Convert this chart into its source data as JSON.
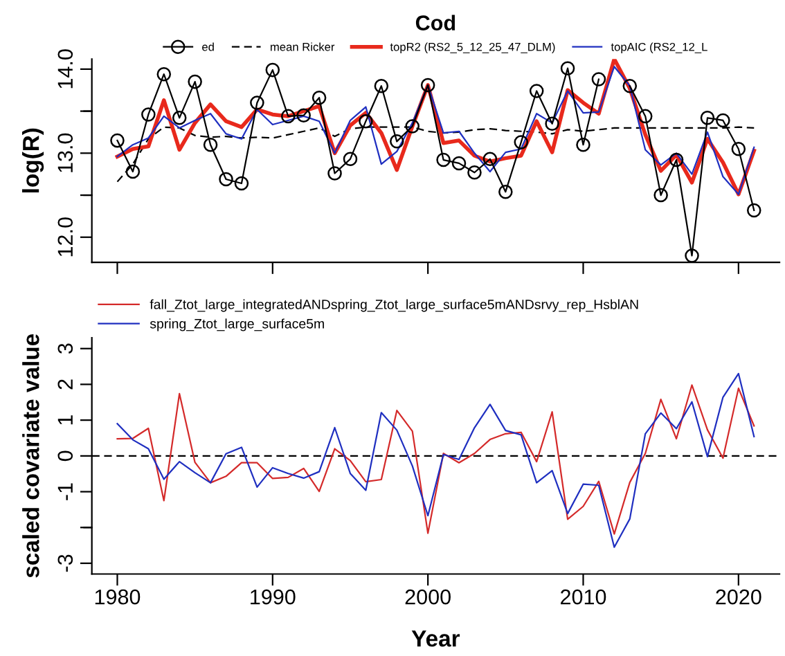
{
  "chart_data": [
    {
      "type": "line",
      "title": "Cod",
      "ylabel": "log(R)",
      "x": [
        1980,
        1981,
        1982,
        1983,
        1984,
        1985,
        1986,
        1987,
        1988,
        1989,
        1990,
        1991,
        1992,
        1993,
        1994,
        1995,
        1996,
        1997,
        1998,
        1999,
        2000,
        2001,
        2002,
        2003,
        2004,
        2005,
        2006,
        2007,
        2008,
        2009,
        2010,
        2011,
        2012,
        2013,
        2014,
        2015,
        2016,
        2017,
        2018,
        2019,
        2020,
        2021
      ],
      "series": [
        {
          "name": "ed",
          "color": "#000000",
          "marker": "circle",
          "line_style": "solid",
          "values": [
            13.15,
            12.78,
            13.46,
            13.94,
            13.42,
            13.85,
            13.1,
            12.69,
            12.64,
            13.6,
            13.99,
            13.44,
            13.45,
            13.66,
            12.76,
            12.93,
            13.38,
            13.8,
            13.14,
            13.32,
            13.81,
            12.92,
            12.88,
            12.77,
            12.93,
            12.54,
            13.13,
            13.74,
            13.35,
            14.01,
            13.1,
            13.88,
            null,
            13.8,
            13.44,
            12.5,
            12.92,
            11.78,
            13.42,
            13.39,
            13.05,
            12.32
          ]
        },
        {
          "name": "mean Ricker",
          "color": "#000000",
          "line_style": "dashed",
          "values": [
            12.66,
            12.87,
            13.17,
            13.31,
            13.3,
            13.21,
            13.19,
            13.2,
            13.18,
            13.19,
            13.18,
            13.22,
            13.26,
            13.3,
            13.2,
            13.29,
            13.31,
            13.31,
            13.31,
            13.31,
            13.26,
            13.24,
            13.25,
            13.28,
            13.29,
            13.27,
            13.26,
            13.25,
            13.23,
            13.28,
            13.26,
            13.28,
            13.3,
            13.3,
            13.3,
            13.3,
            13.3,
            13.3,
            13.3,
            13.3,
            13.31,
            13.3
          ]
        },
        {
          "name": "topR2 (RS2_5_12_25_47_DLM)",
          "color": "#e8291c",
          "line_style": "solid",
          "values": [
            12.96,
            13.05,
            13.08,
            13.63,
            13.04,
            13.36,
            13.58,
            13.38,
            13.31,
            13.52,
            13.46,
            13.44,
            13.5,
            13.56,
            13.0,
            13.33,
            13.48,
            13.24,
            12.8,
            13.32,
            13.81,
            13.12,
            13.15,
            12.97,
            12.9,
            12.94,
            12.97,
            13.38,
            13.01,
            13.75,
            13.6,
            13.47,
            14.12,
            13.77,
            13.22,
            12.79,
            12.98,
            12.65,
            13.17,
            12.89,
            12.51,
            13.03
          ]
        },
        {
          "name": "topAIC (RS2_12_L",
          "color": "#1f2fc0",
          "line_style": "solid",
          "values": [
            12.96,
            13.1,
            13.18,
            13.44,
            13.3,
            13.39,
            13.47,
            13.23,
            13.17,
            13.52,
            13.34,
            13.39,
            13.44,
            13.38,
            13.0,
            13.39,
            13.55,
            12.87,
            13.02,
            13.36,
            13.81,
            13.24,
            13.26,
            13.0,
            12.78,
            13.01,
            13.05,
            13.47,
            13.36,
            13.74,
            13.48,
            13.49,
            14.03,
            13.8,
            13.04,
            12.86,
            13.0,
            12.75,
            13.25,
            12.72,
            12.51,
            13.07
          ]
        }
      ],
      "xlim": [
        1978.36,
        2022.64
      ],
      "xticks": [
        1980,
        1990,
        2000,
        2010,
        2020
      ],
      "ylim": [
        11.7,
        14.12
      ],
      "yticks": [
        {
          "value": 12,
          "label": "12.0"
        },
        {
          "value": 12.5,
          "label": null
        },
        {
          "value": 13,
          "label": "13.0"
        },
        {
          "value": 13.5,
          "label": null
        },
        {
          "value": 14,
          "label": "14.0"
        }
      ],
      "tick_labels": "y",
      "legend": "top",
      "grid": false
    },
    {
      "type": "line",
      "xlabel": "Year",
      "ylabel": "scaled covariate value",
      "x": [
        1980,
        1981,
        1982,
        1983,
        1984,
        1985,
        1986,
        1987,
        1988,
        1989,
        1990,
        1991,
        1992,
        1993,
        1994,
        1995,
        1996,
        1997,
        1998,
        1999,
        2000,
        2001,
        2002,
        2003,
        2004,
        2005,
        2006,
        2007,
        2008,
        2009,
        2010,
        2011,
        2012,
        2013,
        2014,
        2015,
        2016,
        2017,
        2018,
        2019,
        2020,
        2021
      ],
      "series": [
        {
          "name": "fall_Ztot_large_integratedANDspring_Ztot_large_surface5mANDsrvy_rep_HsblAN",
          "color": "#d42a2a",
          "values": [
            0.48,
            0.49,
            0.77,
            -1.25,
            1.74,
            -0.18,
            -0.75,
            -0.57,
            -0.19,
            -0.19,
            -0.63,
            -0.6,
            -0.35,
            -0.99,
            0.2,
            -0.13,
            -0.72,
            -0.66,
            1.27,
            0.69,
            -2.16,
            0.07,
            -0.19,
            0.07,
            0.46,
            0.62,
            0.66,
            -0.16,
            1.23,
            -1.77,
            -1.41,
            -0.71,
            -2.18,
            -0.74,
            0.07,
            1.58,
            0.48,
            1.98,
            0.73,
            -0.06,
            1.89,
            0.84
          ]
        },
        {
          "name": "spring_Ztot_large_surface5m",
          "color": "#1f2fc0",
          "values": [
            0.9,
            0.45,
            0.2,
            -0.65,
            -0.16,
            -0.47,
            -0.75,
            0.06,
            0.24,
            -0.87,
            -0.33,
            -0.49,
            -0.62,
            -0.44,
            0.79,
            -0.49,
            -0.96,
            1.21,
            0.72,
            -0.28,
            -1.67,
            0.04,
            -0.1,
            0.79,
            1.44,
            0.71,
            0.59,
            -0.75,
            -0.41,
            -1.61,
            -0.79,
            -0.82,
            -2.55,
            -1.76,
            0.62,
            1.2,
            0.76,
            1.51,
            -0.02,
            1.64,
            2.3,
            0.54
          ]
        }
      ],
      "ref_lines": [
        {
          "axis": "y",
          "value": 0,
          "color": "#000000",
          "line_style": "dashed"
        }
      ],
      "xlim": [
        1978.36,
        2022.64
      ],
      "xticks": [
        1980,
        1990,
        2000,
        2010,
        2020
      ],
      "ylim": [
        -3.3,
        3.3
      ],
      "yticks": [
        3,
        2,
        1,
        0,
        -1,
        {
          "value": -2,
          "label": null
        },
        -3
      ],
      "legend": "top left",
      "grid": false
    }
  ]
}
